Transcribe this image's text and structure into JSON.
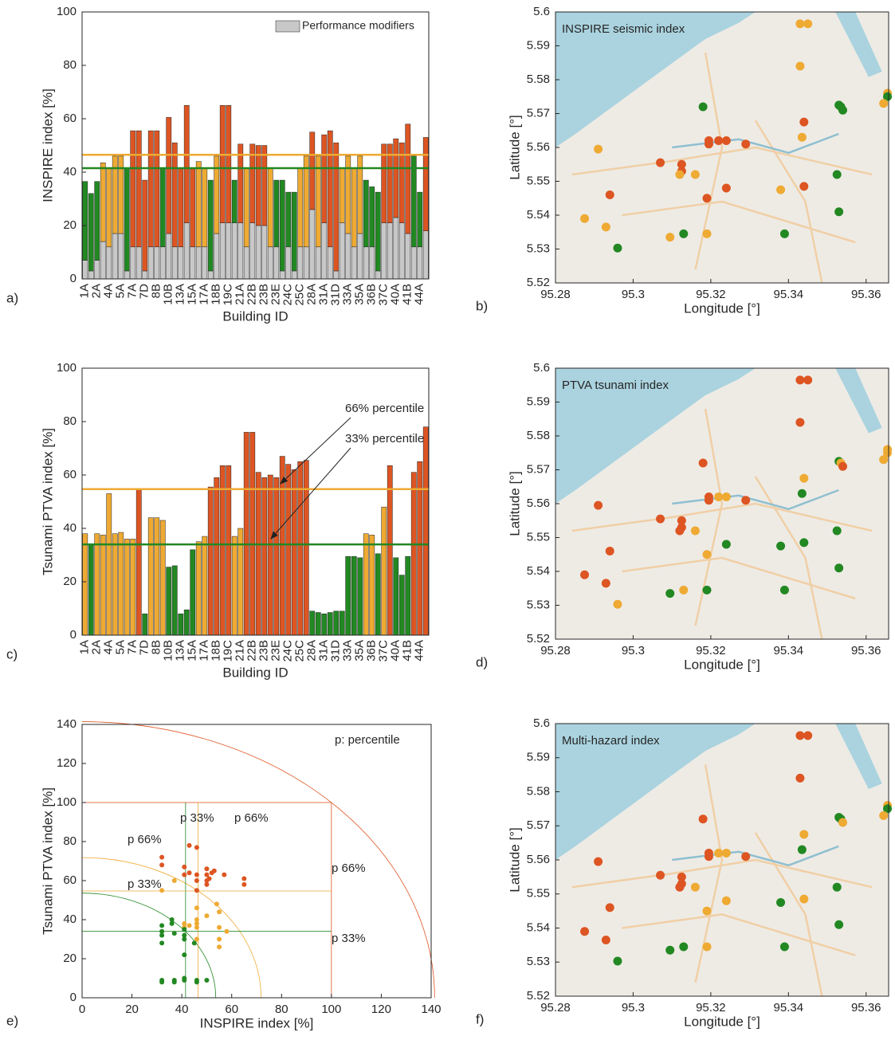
{
  "chart_data": [
    {
      "type": "bar",
      "panel": "a)",
      "ylabel": "INSPIRE index [%]",
      "xlabel": "Building ID",
      "categories": [
        "1A",
        null,
        "2A",
        null,
        "4A",
        null,
        "5A",
        null,
        "7A",
        null,
        "7D",
        null,
        "8B",
        null,
        "10B",
        null,
        "13A",
        null,
        "15A",
        null,
        "17A",
        null,
        "18B",
        null,
        "19C",
        null,
        "21A",
        null,
        "22B",
        null,
        "23B",
        null,
        "23E",
        null,
        "24C",
        null,
        "25C",
        null,
        "28A",
        null,
        "31A",
        null,
        "31D",
        null,
        "33A",
        null,
        "35A",
        null,
        "36B",
        null,
        "37C",
        null,
        "40A",
        null,
        "41B",
        null,
        "44A",
        null
      ],
      "series": [
        {
          "name": "Performance modifiers",
          "color": "#c8c8c8",
          "values": [
            7,
            3,
            7,
            14,
            12,
            17,
            17,
            3,
            12,
            12,
            3,
            12,
            12,
            12,
            17,
            12,
            12,
            21,
            12,
            12,
            12,
            3,
            17,
            21,
            21,
            21,
            21,
            12,
            21,
            20,
            20,
            12,
            12,
            3,
            12,
            3,
            12,
            12,
            26,
            12,
            21,
            12,
            3,
            21,
            17,
            12,
            17,
            12,
            12,
            3,
            21,
            21,
            23,
            21,
            17,
            12,
            12,
            18
          ]
        },
        {
          "values": [
            29.5,
            29,
            29.5,
            29.5,
            29.5,
            29,
            29,
            38.5,
            43.5,
            43.5,
            34,
            43.5,
            43.5,
            29.5,
            43.5,
            39,
            29.5,
            44,
            29.5,
            32,
            29.5,
            34,
            29,
            44,
            44,
            16,
            29.5,
            29.5,
            29.5,
            30,
            30,
            29.5,
            25,
            34,
            20.5,
            29.5,
            29.5,
            34,
            29,
            34,
            33,
            43.5,
            48,
            20.5,
            29,
            29.5,
            29,
            25,
            22.5,
            29.5,
            29.5,
            29.5,
            29.5,
            30,
            41,
            34,
            20.5,
            35
          ],
          "colors": [
            "#282",
            "#282",
            "#282",
            "#ea3",
            "#ea3",
            "#ea3",
            "#ea3",
            "#282",
            "#d52",
            "#d52",
            "#d52",
            "#d52",
            "#d52",
            "#282",
            "#d52",
            "#d52",
            "#d52",
            "#d52",
            "#d52",
            "#ea3",
            "#ea3",
            "#282",
            "#ea3",
            "#d52",
            "#d52",
            "#282",
            "#d52",
            "#ea3",
            "#d52",
            "#d52",
            "#d52",
            "#ea3",
            "#282",
            "#282",
            "#282",
            "#282",
            "#ea3",
            "#ea3",
            "#d52",
            "#ea3",
            "#d52",
            "#d52",
            "#d52",
            "#ea3",
            "#ea3",
            "#ea3",
            "#ea3",
            "#282",
            "#282",
            "#282",
            "#d52",
            "#d52",
            "#d52",
            "#d52",
            "#d52",
            "#282",
            "#282",
            "#d52"
          ]
        }
      ],
      "hlines": [
        {
          "value": 41.5,
          "color": "#282"
        },
        {
          "value": 46.5,
          "color": "#ea3"
        }
      ],
      "legend": "upper right",
      "ylim": [
        0,
        100
      ],
      "yticks": [
        0,
        20,
        40,
        60,
        80,
        100
      ]
    },
    {
      "type": "scatter",
      "map": true,
      "panel": "b)",
      "title": "INSPIRE seismic index",
      "xlabel": "Longitude [°]",
      "ylabel": "Latitude [°]",
      "x": [
        95.343,
        95.345,
        95.343,
        95.3655,
        95.3655,
        95.3645,
        95.353,
        95.3535,
        95.354,
        95.318,
        95.344,
        95.3195,
        95.3195,
        95.322,
        95.324,
        95.329,
        95.3435,
        95.291,
        95.307,
        95.3125,
        95.3125,
        95.312,
        95.316,
        95.3525,
        95.324,
        95.344,
        95.338,
        95.294,
        95.319,
        95.353,
        95.2875,
        95.293,
        95.313,
        95.3095,
        95.339,
        95.319,
        95.296
      ],
      "y": [
        5.5965,
        5.5965,
        5.584,
        5.576,
        5.575,
        5.573,
        5.5725,
        5.572,
        5.571,
        5.572,
        5.5675,
        5.562,
        5.561,
        5.562,
        5.562,
        5.561,
        5.563,
        5.5595,
        5.5555,
        5.555,
        5.553,
        5.552,
        5.552,
        5.552,
        5.548,
        5.5485,
        5.5475,
        5.546,
        5.545,
        5.541,
        5.539,
        5.5365,
        5.5345,
        5.5335,
        5.5345,
        5.5345,
        5.5303
      ],
      "colors": [
        "#ea3",
        "#ea3",
        "#ea3",
        "#ea3",
        "#282",
        "#ea3",
        "#282",
        "#282",
        "#282",
        "#282",
        "#d52",
        "#d52",
        "#d52",
        "#d52",
        "#d52",
        "#d52",
        "#ea3",
        "#ea3",
        "#d52",
        "#d52",
        "#d52",
        "#ea3",
        "#ea3",
        "#282",
        "#d52",
        "#d52",
        "#ea3",
        "#d52",
        "#d52",
        "#282",
        "#ea3",
        "#ea3",
        "#282",
        "#ea3",
        "#282",
        "#ea3",
        "#282"
      ],
      "xlim": [
        95.28,
        95.3658
      ],
      "ylim": [
        5.52,
        5.6
      ],
      "xticks": [
        95.28,
        95.3,
        95.32,
        95.34,
        95.36
      ],
      "yticks": [
        5.52,
        5.53,
        5.54,
        5.55,
        5.56,
        5.57,
        5.58,
        5.59,
        5.6
      ]
    },
    {
      "type": "bar",
      "panel": "c)",
      "ylabel": "Tsunami PTVA index [%]",
      "xlabel": "Building ID",
      "categories": [
        "1A",
        null,
        "2A",
        null,
        "4A",
        null,
        "5A",
        null,
        "7A",
        null,
        "7D",
        null,
        "8B",
        null,
        "10B",
        null,
        "13A",
        null,
        "15A",
        null,
        "17A",
        null,
        "18B",
        null,
        "19C",
        null,
        "21A",
        null,
        "22B",
        null,
        "23B",
        null,
        "23E",
        null,
        "24C",
        null,
        "25C",
        null,
        "28A",
        null,
        "31A",
        null,
        "31D",
        null,
        "33A",
        null,
        "35A",
        null,
        "36B",
        null,
        "37C",
        null,
        "40A",
        null,
        "41B",
        null,
        "44A",
        null
      ],
      "series": [
        {
          "values": [
            38,
            34,
            38,
            37.5,
            53,
            38,
            38.5,
            36,
            36,
            54.5,
            8,
            44,
            44,
            43,
            25.5,
            26,
            8,
            9.5,
            32,
            35,
            37,
            55.5,
            59,
            63.5,
            63.5,
            37,
            40,
            76,
            76,
            61,
            59,
            60,
            59,
            67,
            64,
            62,
            65,
            65.5,
            9,
            8.5,
            8,
            8.5,
            9,
            9,
            29.5,
            29.5,
            29,
            38,
            37.5,
            30.5,
            48,
            63.5,
            29,
            22.5,
            29.5,
            61,
            65,
            78
          ],
          "colors": [
            "#ea3",
            "#282",
            "#ea3",
            "#ea3",
            "#ea3",
            "#ea3",
            "#ea3",
            "#ea3",
            "#ea3",
            "#d52",
            "#282",
            "#ea3",
            "#ea3",
            "#ea3",
            "#282",
            "#282",
            "#282",
            "#282",
            "#282",
            "#ea3",
            "#ea3",
            "#d52",
            "#d52",
            "#d52",
            "#d52",
            "#ea3",
            "#ea3",
            "#d52",
            "#d52",
            "#d52",
            "#d52",
            "#d52",
            "#d52",
            "#d52",
            "#d52",
            "#d52",
            "#d52",
            "#d52",
            "#282",
            "#282",
            "#282",
            "#282",
            "#282",
            "#282",
            "#282",
            "#282",
            "#282",
            "#ea3",
            "#ea3",
            "#282",
            "#ea3",
            "#d52",
            "#282",
            "#282",
            "#282",
            "#d52",
            "#d52",
            "#d52"
          ]
        }
      ],
      "hlines": [
        {
          "value": 34,
          "color": "#282"
        },
        {
          "value": 54.7,
          "color": "#ea3"
        }
      ],
      "annotations": [
        "66% percentile",
        "33% percentile"
      ],
      "ylim": [
        0,
        100
      ],
      "yticks": [
        0,
        20,
        40,
        60,
        80,
        100
      ]
    },
    {
      "type": "scatter",
      "map": true,
      "panel": "d)",
      "title": "PTVA tsunami index",
      "xlabel": "Longitude [°]",
      "ylabel": "Latitude [°]",
      "x": [
        95.343,
        95.345,
        95.343,
        95.3655,
        95.3655,
        95.3645,
        95.353,
        95.3535,
        95.354,
        95.318,
        95.344,
        95.3195,
        95.3195,
        95.322,
        95.324,
        95.329,
        95.3435,
        95.291,
        95.307,
        95.3125,
        95.3125,
        95.312,
        95.316,
        95.3525,
        95.324,
        95.344,
        95.338,
        95.294,
        95.319,
        95.353,
        95.2875,
        95.293,
        95.313,
        95.3095,
        95.339,
        95.319,
        95.296
      ],
      "y": [
        5.5965,
        5.5965,
        5.584,
        5.576,
        5.575,
        5.573,
        5.5725,
        5.572,
        5.571,
        5.572,
        5.5675,
        5.562,
        5.561,
        5.562,
        5.562,
        5.561,
        5.563,
        5.5595,
        5.5555,
        5.555,
        5.553,
        5.552,
        5.552,
        5.552,
        5.548,
        5.5485,
        5.5475,
        5.546,
        5.545,
        5.541,
        5.539,
        5.5365,
        5.5345,
        5.5335,
        5.5345,
        5.5345,
        5.5303
      ],
      "colors": [
        "#d52",
        "#d52",
        "#d52",
        "#ea3",
        "#ea3",
        "#ea3",
        "#282",
        "#ea3",
        "#d52",
        "#d52",
        "#ea3",
        "#d52",
        "#d52",
        "#ea3",
        "#ea3",
        "#d52",
        "#282",
        "#d52",
        "#d52",
        "#d52",
        "#d52",
        "#d52",
        "#ea3",
        "#282",
        "#282",
        "#282",
        "#282",
        "#d52",
        "#ea3",
        "#282",
        "#d52",
        "#d52",
        "#ea3",
        "#282",
        "#282",
        "#282",
        "#ea3"
      ],
      "xlim": [
        95.28,
        95.3658
      ],
      "ylim": [
        5.52,
        5.6
      ],
      "xticks": [
        95.28,
        95.3,
        95.32,
        95.34,
        95.36
      ],
      "yticks": [
        5.52,
        5.53,
        5.54,
        5.55,
        5.56,
        5.57,
        5.58,
        5.59,
        5.6
      ]
    },
    {
      "type": "scatter",
      "panel": "e)",
      "xlabel": "INSPIRE index [%]",
      "ylabel": "Tsunami PTVA index [%]",
      "x": [
        32,
        32,
        41,
        43,
        46,
        41,
        43,
        46,
        46,
        50,
        50,
        51,
        52,
        53,
        50,
        57,
        65,
        65,
        46,
        50,
        32,
        37,
        41,
        41,
        43,
        46,
        46,
        46,
        46,
        50,
        54,
        55,
        55,
        55,
        55,
        58,
        46,
        32,
        32,
        32,
        32,
        36,
        36,
        37,
        41,
        41,
        41,
        41,
        45,
        32,
        32,
        37,
        37,
        41,
        41,
        46,
        46,
        50
      ],
      "y": [
        72,
        68,
        67,
        78,
        77,
        63,
        64,
        63,
        60,
        66,
        63,
        61,
        64,
        65,
        58,
        63,
        61,
        58,
        55,
        60,
        55,
        60,
        38,
        36,
        37,
        46,
        38,
        36,
        30,
        42,
        48,
        44,
        36,
        30,
        26,
        34,
        40,
        37,
        34,
        32,
        28,
        38,
        40,
        33,
        35,
        30,
        32,
        22,
        28,
        9,
        8,
        9,
        8,
        10,
        9,
        8,
        9,
        9
      ],
      "colors": [
        "#d52",
        "#d52",
        "#d52",
        "#d52",
        "#d52",
        "#d52",
        "#d52",
        "#d52",
        "#d52",
        "#d52",
        "#d52",
        "#d52",
        "#d52",
        "#d52",
        "#d52",
        "#d52",
        "#d52",
        "#d52",
        "#d52",
        "#d52",
        "#ea3",
        "#ea3",
        "#ea3",
        "#ea3",
        "#ea3",
        "#ea3",
        "#ea3",
        "#ea3",
        "#ea3",
        "#ea3",
        "#ea3",
        "#ea3",
        "#ea3",
        "#ea3",
        "#ea3",
        "#ea3",
        "#ea3",
        "#282",
        "#282",
        "#282",
        "#282",
        "#282",
        "#282",
        "#282",
        "#282",
        "#282",
        "#282",
        "#282",
        "#282",
        "#282",
        "#282",
        "#282",
        "#282",
        "#282",
        "#282",
        "#282",
        "#282",
        "#282"
      ],
      "vlines": [
        {
          "value": 41.5,
          "color": "#282"
        },
        {
          "value": 46.5,
          "color": "#ea3"
        }
      ],
      "hlines": [
        {
          "value": 34,
          "color": "#282"
        },
        {
          "value": 54.7,
          "color": "#ea3"
        }
      ],
      "arcs": [
        {
          "radius": 53.6,
          "color": "#282"
        },
        {
          "radius": 71.8,
          "color": "#ea3"
        },
        {
          "radius": 141.4,
          "color": "#d52"
        }
      ],
      "box": 100,
      "annotations": [
        "p: percentile",
        "p 33%",
        "p 66%",
        "p 66%",
        "p 33%",
        "p 66%",
        "p 33%"
      ],
      "xlim": [
        0,
        140
      ],
      "ylim": [
        0,
        140
      ],
      "xticks": [
        0,
        20,
        40,
        60,
        80,
        100,
        120,
        140
      ],
      "yticks": [
        0,
        20,
        40,
        60,
        80,
        100,
        120,
        140
      ]
    },
    {
      "type": "scatter",
      "map": true,
      "panel": "f)",
      "title": "Multi-hazard index",
      "xlabel": "Longitude [°]",
      "ylabel": "Latitude [°]",
      "x": [
        95.343,
        95.345,
        95.343,
        95.3655,
        95.3655,
        95.3645,
        95.353,
        95.3535,
        95.354,
        95.318,
        95.344,
        95.3195,
        95.3195,
        95.322,
        95.324,
        95.329,
        95.3435,
        95.291,
        95.307,
        95.3125,
        95.3125,
        95.312,
        95.316,
        95.3525,
        95.324,
        95.344,
        95.338,
        95.294,
        95.319,
        95.353,
        95.2875,
        95.293,
        95.313,
        95.3095,
        95.339,
        95.319,
        95.296
      ],
      "y": [
        5.5965,
        5.5965,
        5.584,
        5.576,
        5.575,
        5.573,
        5.5725,
        5.572,
        5.571,
        5.572,
        5.5675,
        5.562,
        5.561,
        5.562,
        5.562,
        5.561,
        5.563,
        5.5595,
        5.5555,
        5.555,
        5.553,
        5.552,
        5.552,
        5.552,
        5.548,
        5.5485,
        5.5475,
        5.546,
        5.545,
        5.541,
        5.539,
        5.5365,
        5.5345,
        5.5335,
        5.5345,
        5.5345,
        5.5303
      ],
      "colors": [
        "#d52",
        "#d52",
        "#d52",
        "#ea3",
        "#282",
        "#ea3",
        "#282",
        "#282",
        "#ea3",
        "#d52",
        "#ea3",
        "#d52",
        "#d52",
        "#ea3",
        "#ea3",
        "#d52",
        "#282",
        "#d52",
        "#d52",
        "#d52",
        "#d52",
        "#d52",
        "#ea3",
        "#282",
        "#ea3",
        "#ea3",
        "#282",
        "#d52",
        "#ea3",
        "#282",
        "#d52",
        "#d52",
        "#282",
        "#282",
        "#282",
        "#ea3",
        "#282"
      ],
      "xlim": [
        95.28,
        95.3658
      ],
      "ylim": [
        5.52,
        5.6
      ],
      "xticks": [
        95.28,
        95.3,
        95.32,
        95.34,
        95.36
      ],
      "yticks": [
        5.52,
        5.53,
        5.54,
        5.55,
        5.56,
        5.57,
        5.58,
        5.59,
        5.6
      ]
    }
  ]
}
